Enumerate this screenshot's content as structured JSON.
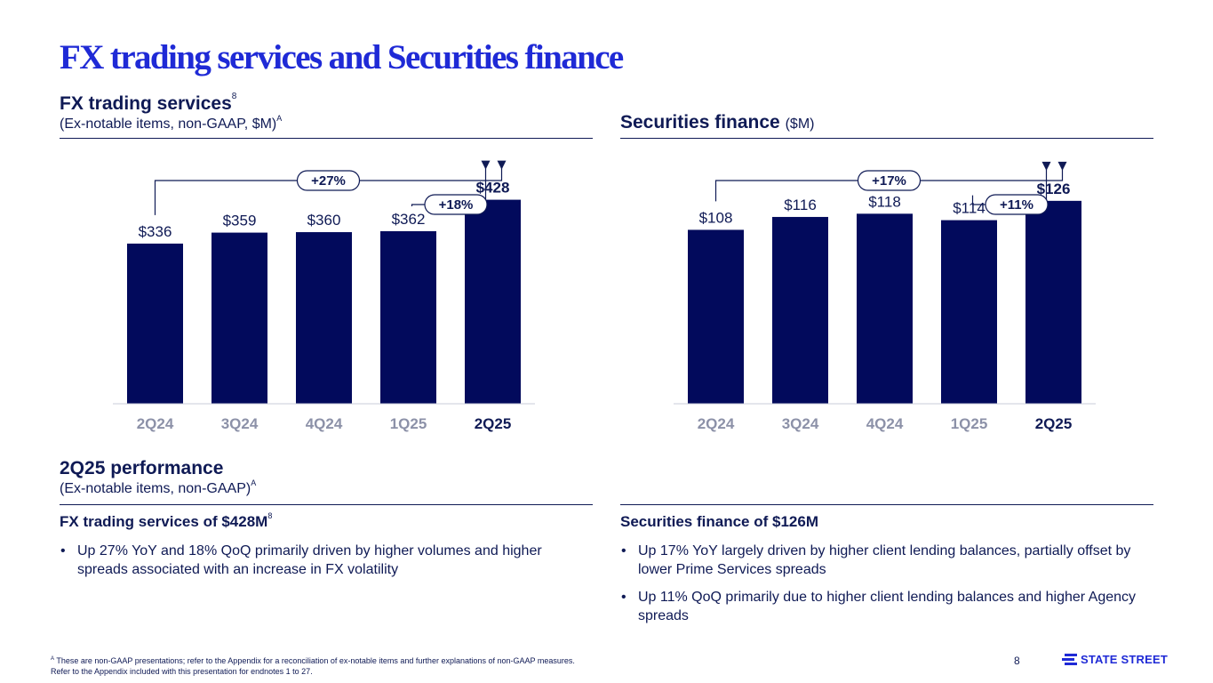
{
  "page": {
    "title": "FX trading services and Securities finance",
    "page_number": "8",
    "logo_text": "STATE STREET"
  },
  "fx_section": {
    "heading": "FX trading services",
    "heading_sup": "8",
    "subheading": "(Ex-notable items, non-GAAP, $M)",
    "subheading_sup": "A"
  },
  "sec_section": {
    "heading": "Securities finance",
    "unit": "($M)"
  },
  "performance": {
    "heading": "2Q25 performance",
    "subheading": "(Ex-notable items, non-GAAP)",
    "subheading_sup": "A",
    "fx": {
      "heading": "FX trading services of $428M",
      "heading_sup": "8",
      "bullets": [
        "Up 27% YoY and 18% QoQ primarily driven by higher volumes and higher spreads associated with an increase in FX volatility"
      ]
    },
    "sec": {
      "heading": "Securities finance of $126M",
      "bullets": [
        "Up 17% YoY largely driven by higher client lending balances, partially offset by lower Prime Services spreads",
        "Up 11% QoQ primarily due to higher client lending balances and higher Agency spreads"
      ]
    }
  },
  "footnote": {
    "marker": "A",
    "line1": "These are non-GAAP presentations; refer to the Appendix for a reconciliation of ex-notable items and further explanations of non-GAAP measures.",
    "line2": "Refer to the Appendix included with this presentation for endnotes 1 to 27."
  },
  "colors": {
    "bar": "#020a5c",
    "title": "#1f2ad6",
    "text": "#0f1a55",
    "muted_category": "#8c91a8"
  },
  "chart_data": [
    {
      "type": "bar",
      "title": "FX trading services",
      "categories": [
        "2Q24",
        "3Q24",
        "4Q24",
        "1Q25",
        "2Q25"
      ],
      "values": [
        336,
        359,
        360,
        362,
        428
      ],
      "labels": [
        "$336",
        "$359",
        "$360",
        "$362",
        "$428"
      ],
      "highlight_index": 4,
      "ylim": [
        0,
        500
      ],
      "annotations": [
        {
          "label": "+27%",
          "from_index": 0,
          "to_index": 4
        },
        {
          "label": "+18%",
          "from_index": 3,
          "to_index": 4
        }
      ]
    },
    {
      "type": "bar",
      "title": "Securities finance",
      "categories": [
        "2Q24",
        "3Q24",
        "4Q24",
        "1Q25",
        "2Q25"
      ],
      "values": [
        108,
        116,
        118,
        114,
        126
      ],
      "labels": [
        "$108",
        "$116",
        "$118",
        "$114",
        "$126"
      ],
      "highlight_index": 4,
      "ylim": [
        0,
        148
      ],
      "annotations": [
        {
          "label": "+17%",
          "from_index": 0,
          "to_index": 4
        },
        {
          "label": "+11%",
          "from_index": 3,
          "to_index": 4
        }
      ]
    }
  ]
}
